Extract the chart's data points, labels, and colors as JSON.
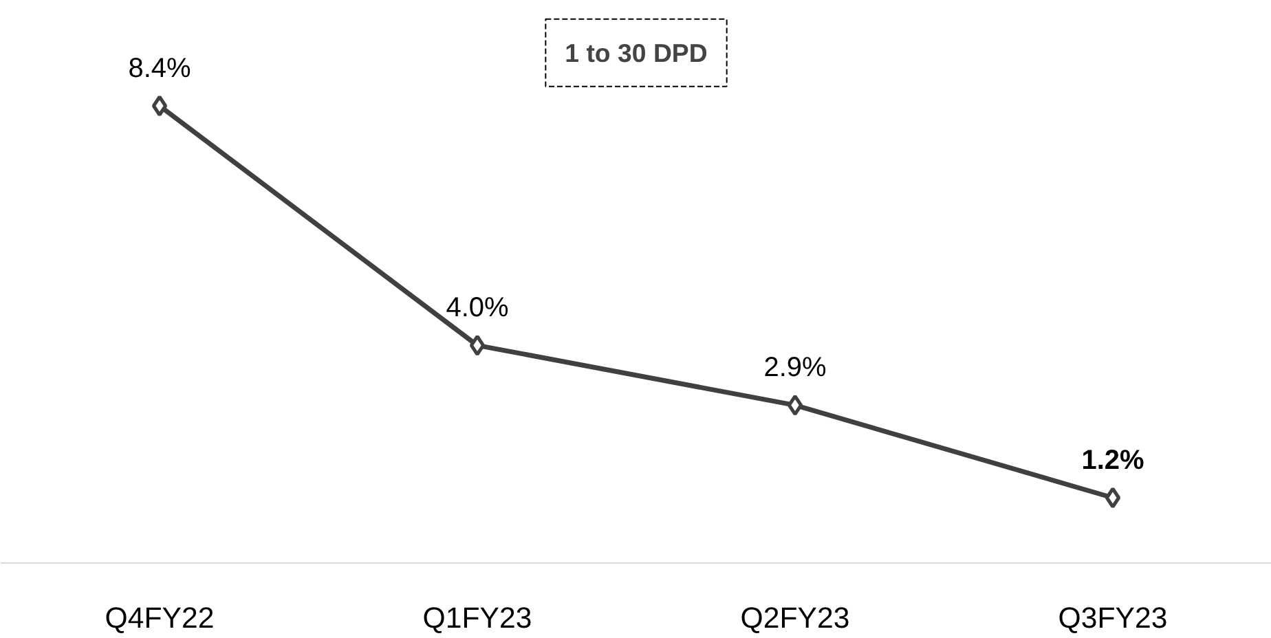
{
  "chart_data": {
    "type": "line",
    "title": "1 to 30 DPD",
    "categories": [
      "Q4FY22",
      "Q1FY23",
      "Q2FY23",
      "Q3FY23"
    ],
    "series": [
      {
        "color": "#404040",
        "values": [
          8.4,
          4.0,
          2.9,
          1.2
        ],
        "value_labels": [
          "8.4%",
          "4.0%",
          "2.9%",
          "1.2%"
        ]
      }
    ],
    "marker": "diamond",
    "line_style": "solid",
    "tick_labels": "x"
  }
}
